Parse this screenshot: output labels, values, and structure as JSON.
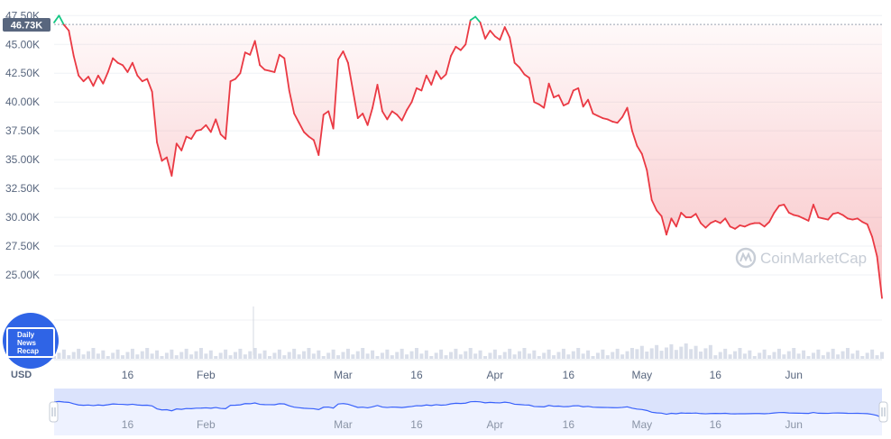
{
  "chart_data": {
    "type": "line",
    "currency_label": "USD",
    "current_value_label": "46.73K",
    "watermark": "CoinMarketCap",
    "channel_logo": {
      "lines": [
        "Daily",
        "News",
        "Recap"
      ]
    },
    "ylim": [
      22500,
      47600
    ],
    "x_range": [
      0,
      169
    ],
    "y_ticks": [
      {
        "value": 47500,
        "label": "47.50K"
      },
      {
        "value": 45000,
        "label": "45.00K"
      },
      {
        "value": 42500,
        "label": "42.50K"
      },
      {
        "value": 40000,
        "label": "40.00K"
      },
      {
        "value": 37500,
        "label": "37.50K"
      },
      {
        "value": 35000,
        "label": "35.00K"
      },
      {
        "value": 32500,
        "label": "32.50K"
      },
      {
        "value": 30000,
        "label": "30.00K"
      },
      {
        "value": 27500,
        "label": "27.50K"
      },
      {
        "value": 25000,
        "label": "25.00K"
      }
    ],
    "x_ticks": [
      {
        "x": 15,
        "label": "16"
      },
      {
        "x": 31,
        "label": "Feb"
      },
      {
        "x": 59,
        "label": "Mar"
      },
      {
        "x": 74,
        "label": "16"
      },
      {
        "x": 90,
        "label": "Apr"
      },
      {
        "x": 105,
        "label": "16"
      },
      {
        "x": 120,
        "label": "May"
      },
      {
        "x": 135,
        "label": "16"
      },
      {
        "x": 151,
        "label": "Jun"
      }
    ],
    "reference_value": 46730,
    "series": [
      {
        "points": [
          [
            0,
            46900
          ],
          [
            1,
            47500
          ],
          [
            2,
            46700
          ],
          [
            3,
            46200
          ],
          [
            4,
            44000
          ],
          [
            5,
            42300
          ],
          [
            6,
            41800
          ],
          [
            7,
            42200
          ],
          [
            8,
            41400
          ],
          [
            9,
            42300
          ],
          [
            10,
            41600
          ],
          [
            11,
            42600
          ],
          [
            12,
            43800
          ],
          [
            13,
            43400
          ],
          [
            14,
            43200
          ],
          [
            15,
            42600
          ],
          [
            16,
            43400
          ],
          [
            17,
            42300
          ],
          [
            18,
            41800
          ],
          [
            19,
            42000
          ],
          [
            20,
            40900
          ],
          [
            21,
            36500
          ],
          [
            22,
            34900
          ],
          [
            23,
            35200
          ],
          [
            24,
            33600
          ],
          [
            25,
            36400
          ],
          [
            26,
            35800
          ],
          [
            27,
            37000
          ],
          [
            28,
            36800
          ],
          [
            29,
            37500
          ],
          [
            30,
            37600
          ],
          [
            31,
            38000
          ],
          [
            32,
            37400
          ],
          [
            33,
            38500
          ],
          [
            34,
            37200
          ],
          [
            35,
            36800
          ],
          [
            36,
            41800
          ],
          [
            37,
            42000
          ],
          [
            38,
            42500
          ],
          [
            39,
            44300
          ],
          [
            40,
            44100
          ],
          [
            41,
            45300
          ],
          [
            42,
            43200
          ],
          [
            43,
            42800
          ],
          [
            44,
            42700
          ],
          [
            45,
            42600
          ],
          [
            46,
            44100
          ],
          [
            47,
            43800
          ],
          [
            48,
            41000
          ],
          [
            49,
            39000
          ],
          [
            50,
            38200
          ],
          [
            51,
            37400
          ],
          [
            52,
            37000
          ],
          [
            53,
            36700
          ],
          [
            54,
            35400
          ],
          [
            55,
            38900
          ],
          [
            56,
            39200
          ],
          [
            57,
            37700
          ],
          [
            58,
            43700
          ],
          [
            59,
            44400
          ],
          [
            60,
            43400
          ],
          [
            61,
            41000
          ],
          [
            62,
            38600
          ],
          [
            63,
            39000
          ],
          [
            64,
            38000
          ],
          [
            65,
            39500
          ],
          [
            66,
            41500
          ],
          [
            67,
            39200
          ],
          [
            68,
            38500
          ],
          [
            69,
            39200
          ],
          [
            70,
            38900
          ],
          [
            71,
            38400
          ],
          [
            72,
            39300
          ],
          [
            73,
            40000
          ],
          [
            74,
            41200
          ],
          [
            75,
            41000
          ],
          [
            76,
            42300
          ],
          [
            77,
            41500
          ],
          [
            78,
            42700
          ],
          [
            79,
            42000
          ],
          [
            80,
            42400
          ],
          [
            81,
            44000
          ],
          [
            82,
            44800
          ],
          [
            83,
            44500
          ],
          [
            84,
            45000
          ],
          [
            85,
            47100
          ],
          [
            86,
            47400
          ],
          [
            87,
            46900
          ],
          [
            88,
            45500
          ],
          [
            89,
            46200
          ],
          [
            90,
            45700
          ],
          [
            91,
            45400
          ],
          [
            92,
            46500
          ],
          [
            93,
            45600
          ],
          [
            94,
            43400
          ],
          [
            95,
            43000
          ],
          [
            96,
            42400
          ],
          [
            97,
            42100
          ],
          [
            98,
            40000
          ],
          [
            99,
            39800
          ],
          [
            100,
            39500
          ],
          [
            101,
            41600
          ],
          [
            102,
            40400
          ],
          [
            103,
            40600
          ],
          [
            104,
            39700
          ],
          [
            105,
            39900
          ],
          [
            106,
            41000
          ],
          [
            107,
            41200
          ],
          [
            108,
            39600
          ],
          [
            109,
            40200
          ],
          [
            110,
            39000
          ],
          [
            111,
            38800
          ],
          [
            112,
            38600
          ],
          [
            113,
            38500
          ],
          [
            114,
            38300
          ],
          [
            115,
            38200
          ],
          [
            116,
            38700
          ],
          [
            117,
            39500
          ],
          [
            118,
            37500
          ],
          [
            119,
            36200
          ],
          [
            120,
            35500
          ],
          [
            121,
            34100
          ],
          [
            122,
            31500
          ],
          [
            123,
            30600
          ],
          [
            124,
            30100
          ],
          [
            125,
            28500
          ],
          [
            126,
            29900
          ],
          [
            127,
            29200
          ],
          [
            128,
            30400
          ],
          [
            129,
            30000
          ],
          [
            130,
            30000
          ],
          [
            131,
            30300
          ],
          [
            132,
            29500
          ],
          [
            133,
            29100
          ],
          [
            134,
            29500
          ],
          [
            135,
            29700
          ],
          [
            136,
            29500
          ],
          [
            137,
            29900
          ],
          [
            138,
            29200
          ],
          [
            139,
            29000
          ],
          [
            140,
            29300
          ],
          [
            141,
            29200
          ],
          [
            142,
            29400
          ],
          [
            143,
            29500
          ],
          [
            144,
            29500
          ],
          [
            145,
            29200
          ],
          [
            146,
            29600
          ],
          [
            147,
            30400
          ],
          [
            148,
            31000
          ],
          [
            149,
            31100
          ],
          [
            150,
            30400
          ],
          [
            151,
            30200
          ],
          [
            152,
            30100
          ],
          [
            153,
            29900
          ],
          [
            154,
            29700
          ],
          [
            155,
            31100
          ],
          [
            156,
            30000
          ],
          [
            157,
            29900
          ],
          [
            158,
            29800
          ],
          [
            159,
            30300
          ],
          [
            160,
            30400
          ],
          [
            161,
            30200
          ],
          [
            162,
            29900
          ],
          [
            163,
            29800
          ],
          [
            164,
            29900
          ],
          [
            165,
            29600
          ],
          [
            166,
            29400
          ],
          [
            167,
            28300
          ],
          [
            168,
            26600
          ],
          [
            169,
            23000
          ]
        ]
      }
    ],
    "colors": {
      "down_line": "#ea3943",
      "up_line": "#16c784",
      "down_fill": "#ea3943",
      "badge_bg": "#58667e",
      "nav_fill": "#eef2ff",
      "nav_line": "#3861fb",
      "logo_bg": "#2f64e6",
      "volume": "#cfd6e4"
    }
  }
}
